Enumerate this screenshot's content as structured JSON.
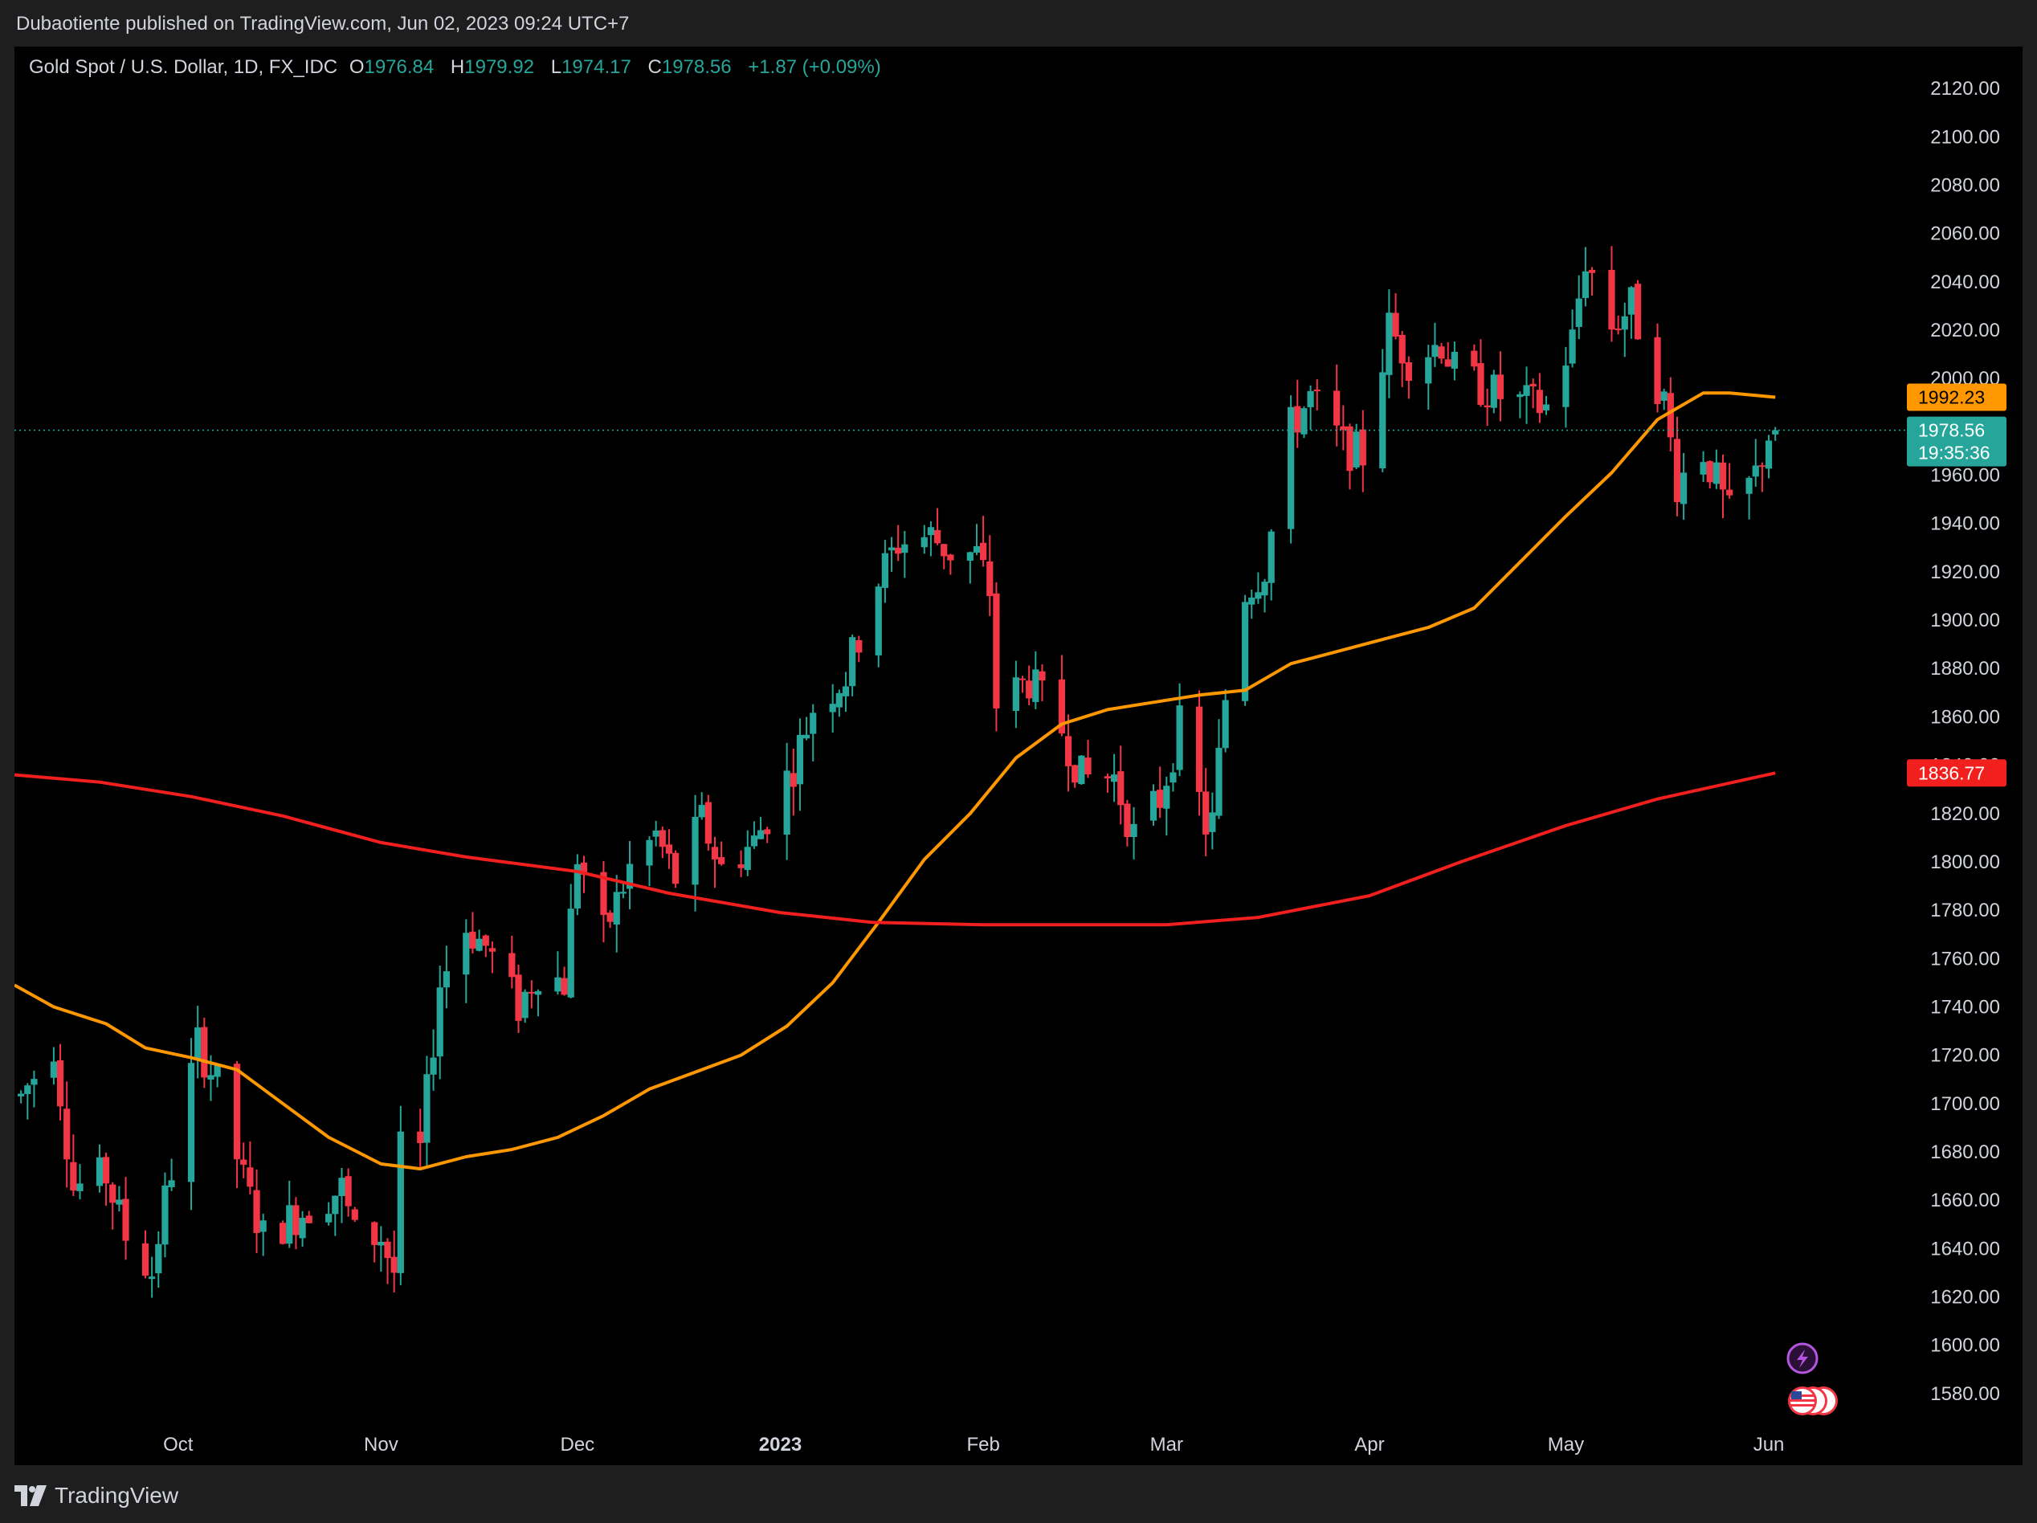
{
  "header": {
    "published_text": "Dubaotiente published on TradingView.com, Jun 02, 2023 09:24 UTC+7"
  },
  "legend": {
    "symbol": "Gold Spot / U.S. Dollar, 1D, FX_IDC",
    "open_key": "O",
    "open": "1976.84",
    "high_key": "H",
    "high": "1979.92",
    "low_key": "L",
    "low": "1974.17",
    "close_key": "C",
    "close": "1978.56",
    "change": "+1.87 (+0.09%)"
  },
  "price_tags": {
    "ma_orange": "1992.23",
    "last_price": "1978.56",
    "countdown": "19:35:36",
    "ma_red": "1836.77"
  },
  "footer": {
    "brand": "TradingView"
  },
  "colors": {
    "up": "#26a69a",
    "down": "#f23645",
    "ma_orange": "#ff9800",
    "ma_red": "#f21f1f",
    "axis_text": "#d1d4dc",
    "background": "#000000"
  },
  "icons": [
    "lightning-event-icon",
    "us-flag-event-icon"
  ],
  "chart_data": {
    "type": "candlestick",
    "y_ticks": [
      "1580.00",
      "1600.00",
      "1620.00",
      "1640.00",
      "1660.00",
      "1680.00",
      "1700.00",
      "1720.00",
      "1740.00",
      "1760.00",
      "1780.00",
      "1800.00",
      "1820.00",
      "1840.00",
      "1860.00",
      "1880.00",
      "1900.00",
      "1920.00",
      "1940.00",
      "1960.00",
      "1980.00",
      "2000.00",
      "2020.00",
      "2040.00",
      "2060.00",
      "2080.00",
      "2100.00",
      "2120.00"
    ],
    "ylim": [
      1567,
      2130
    ],
    "x_ticks": [
      {
        "label": "Oct",
        "date": "2022-10-01"
      },
      {
        "label": "Nov",
        "date": "2022-11-01"
      },
      {
        "label": "Dec",
        "date": "2022-12-01"
      },
      {
        "label": "2023",
        "date": "2023-01-01"
      },
      {
        "label": "Feb",
        "date": "2023-02-01"
      },
      {
        "label": "Mar",
        "date": "2023-03-01"
      },
      {
        "label": "Apr",
        "date": "2023-04-01"
      },
      {
        "label": "May",
        "date": "2023-05-01"
      },
      {
        "label": "Jun",
        "date": "2023-06-01"
      }
    ],
    "xlim": [
      "2022-09-06",
      "2023-06-14"
    ],
    "close_path": [
      [
        "2022-09-07",
        1703
      ],
      [
        "2022-09-12",
        1725
      ],
      [
        "2022-09-15",
        1665
      ],
      [
        "2022-09-20",
        1670
      ],
      [
        "2022-09-23",
        1645
      ],
      [
        "2022-09-27",
        1630
      ],
      [
        "2022-09-29",
        1660
      ],
      [
        "2022-10-04",
        1725
      ],
      [
        "2022-10-07",
        1708
      ],
      [
        "2022-10-11",
        1668
      ],
      [
        "2022-10-14",
        1645
      ],
      [
        "2022-10-18",
        1652
      ],
      [
        "2022-10-21",
        1657
      ],
      [
        "2022-10-26",
        1665
      ],
      [
        "2022-10-28",
        1645
      ],
      [
        "2022-11-01",
        1645
      ],
      [
        "2022-11-03",
        1630
      ],
      [
        "2022-11-04",
        1680
      ],
      [
        "2022-11-07",
        1680
      ],
      [
        "2022-11-10",
        1750
      ],
      [
        "2022-11-14",
        1773
      ],
      [
        "2022-11-17",
        1765
      ],
      [
        "2022-11-22",
        1740
      ],
      [
        "2022-11-25",
        1755
      ],
      [
        "2022-11-29",
        1750
      ],
      [
        "2022-12-01",
        1803
      ],
      [
        "2022-12-05",
        1770
      ],
      [
        "2022-12-09",
        1797
      ],
      [
        "2022-12-13",
        1811
      ],
      [
        "2022-12-16",
        1793
      ],
      [
        "2022-12-20",
        1817
      ],
      [
        "2022-12-23",
        1797
      ],
      [
        "2022-12-28",
        1808
      ],
      [
        "2023-01-03",
        1840
      ],
      [
        "2023-01-06",
        1864
      ],
      [
        "2023-01-11",
        1877
      ],
      [
        "2023-01-16",
        1917
      ],
      [
        "2023-01-19",
        1932
      ],
      [
        "2023-01-24",
        1935
      ],
      [
        "2023-01-27",
        1928
      ],
      [
        "2023-01-31",
        1927
      ],
      [
        "2023-02-02",
        1912
      ],
      [
        "2023-02-03",
        1865
      ],
      [
        "2023-02-08",
        1875
      ],
      [
        "2023-02-13",
        1855
      ],
      [
        "2023-02-16",
        1835
      ],
      [
        "2023-02-21",
        1835
      ],
      [
        "2023-02-24",
        1811
      ],
      [
        "2023-02-28",
        1826
      ],
      [
        "2023-03-03",
        1856
      ],
      [
        "2023-03-07",
        1815
      ],
      [
        "2023-03-08",
        1816
      ],
      [
        "2023-03-10",
        1868
      ],
      [
        "2023-03-13",
        1912
      ],
      [
        "2023-03-16",
        1922
      ],
      [
        "2023-03-20",
        1980
      ],
      [
        "2023-03-23",
        1992
      ],
      [
        "2023-03-28",
        1972
      ],
      [
        "2023-03-31",
        1968
      ],
      [
        "2023-04-04",
        2021
      ],
      [
        "2023-04-07",
        2008
      ],
      [
        "2023-04-12",
        2015
      ],
      [
        "2023-04-14",
        2003
      ],
      [
        "2023-04-19",
        1995
      ],
      [
        "2023-04-24",
        1990
      ],
      [
        "2023-04-28",
        1988
      ],
      [
        "2023-05-02",
        2016
      ],
      [
        "2023-05-04",
        2050
      ],
      [
        "2023-05-08",
        2022
      ],
      [
        "2023-05-11",
        2030
      ],
      [
        "2023-05-16",
        1990
      ],
      [
        "2023-05-18",
        1957
      ],
      [
        "2023-05-22",
        1970
      ],
      [
        "2023-05-24",
        1957
      ],
      [
        "2023-05-26",
        1943
      ],
      [
        "2023-05-30",
        1960
      ],
      [
        "2023-06-01",
        1977
      ],
      [
        "2023-06-02",
        1978.56
      ]
    ],
    "last_candle": {
      "date": "2023-06-02",
      "open": 1976.84,
      "high": 1979.92,
      "low": 1974.17,
      "close": 1978.56
    },
    "series": [
      {
        "type": "line",
        "color": "#ff9800",
        "points": [
          [
            "2022-09-06",
            1749
          ],
          [
            "2022-09-12",
            1740
          ],
          [
            "2022-09-20",
            1733
          ],
          [
            "2022-09-26",
            1723
          ],
          [
            "2022-10-03",
            1719
          ],
          [
            "2022-10-10",
            1714
          ],
          [
            "2022-10-17",
            1700
          ],
          [
            "2022-10-24",
            1686
          ],
          [
            "2022-11-01",
            1675
          ],
          [
            "2022-11-07",
            1673
          ],
          [
            "2022-11-14",
            1678
          ],
          [
            "2022-11-21",
            1681
          ],
          [
            "2022-11-28",
            1686
          ],
          [
            "2022-12-05",
            1695
          ],
          [
            "2022-12-12",
            1706
          ],
          [
            "2022-12-19",
            1713
          ],
          [
            "2022-12-26",
            1720
          ],
          [
            "2023-01-02",
            1732
          ],
          [
            "2023-01-09",
            1750
          ],
          [
            "2023-01-16",
            1775
          ],
          [
            "2023-01-23",
            1801
          ],
          [
            "2023-01-30",
            1820
          ],
          [
            "2023-02-06",
            1843
          ],
          [
            "2023-02-13",
            1857
          ],
          [
            "2023-02-20",
            1863
          ],
          [
            "2023-02-27",
            1866
          ],
          [
            "2023-03-06",
            1869
          ],
          [
            "2023-03-13",
            1871
          ],
          [
            "2023-03-20",
            1882
          ],
          [
            "2023-03-27",
            1887
          ],
          [
            "2023-04-03",
            1892
          ],
          [
            "2023-04-10",
            1897
          ],
          [
            "2023-04-17",
            1905
          ],
          [
            "2023-04-24",
            1924
          ],
          [
            "2023-05-01",
            1943
          ],
          [
            "2023-05-08",
            1961
          ],
          [
            "2023-05-15",
            1983
          ],
          [
            "2023-05-22",
            1994
          ],
          [
            "2023-05-26",
            1994
          ],
          [
            "2023-06-02",
            1992.23
          ]
        ]
      },
      {
        "type": "line",
        "color": "#f21f1f",
        "points": [
          [
            "2022-09-06",
            1836
          ],
          [
            "2022-09-19",
            1833
          ],
          [
            "2022-10-03",
            1827
          ],
          [
            "2022-10-17",
            1819
          ],
          [
            "2022-11-01",
            1808
          ],
          [
            "2022-11-14",
            1802
          ],
          [
            "2022-12-01",
            1796
          ],
          [
            "2022-12-15",
            1787
          ],
          [
            "2023-01-01",
            1779
          ],
          [
            "2023-01-15",
            1775
          ],
          [
            "2023-02-01",
            1774
          ],
          [
            "2023-02-15",
            1774
          ],
          [
            "2023-03-01",
            1774
          ],
          [
            "2023-03-15",
            1777
          ],
          [
            "2023-04-01",
            1786
          ],
          [
            "2023-04-15",
            1800
          ],
          [
            "2023-05-01",
            1815
          ],
          [
            "2023-05-15",
            1826
          ],
          [
            "2023-06-02",
            1836.77
          ]
        ]
      }
    ]
  }
}
